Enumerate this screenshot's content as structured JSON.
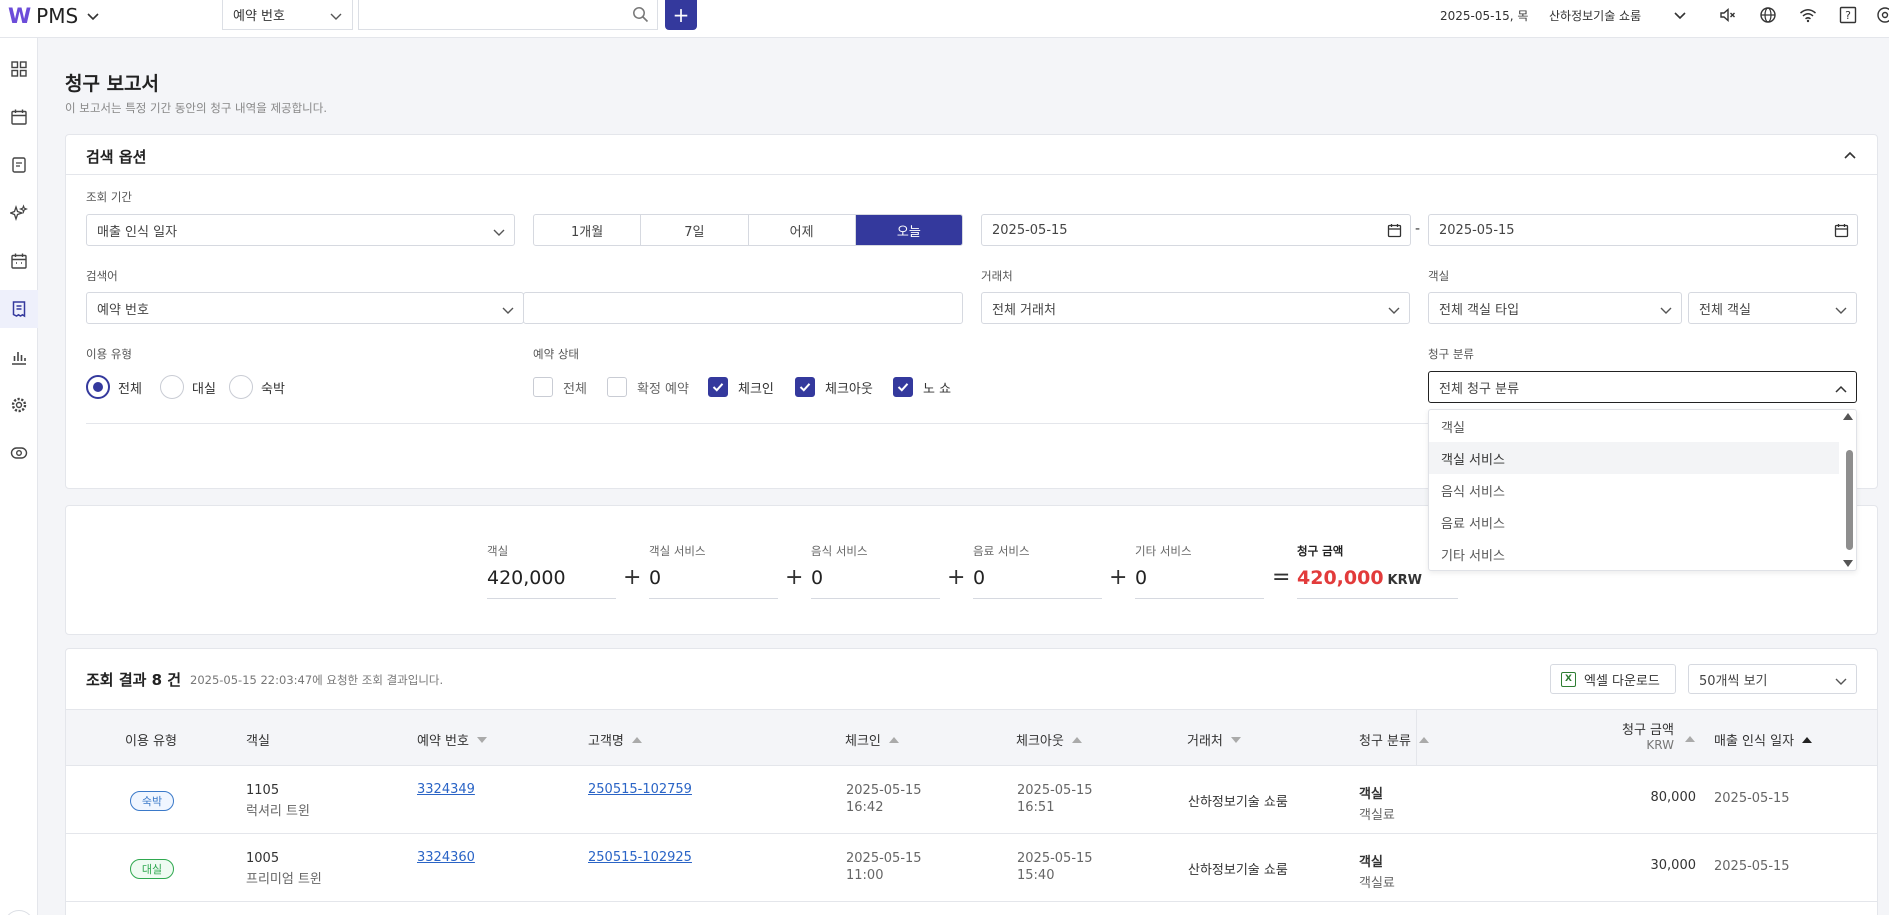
{
  "topbar": {
    "logo_mark": "W",
    "app_name": "PMS",
    "search_type": "예약 번호",
    "search_value": "",
    "add_label": "+",
    "date": "2025-05-15, 목",
    "company": "산하정보기술 쇼룸"
  },
  "nav": {
    "items": [
      "dashboard",
      "calendar",
      "reservations",
      "housekeeping",
      "schedule",
      "billing",
      "statistics",
      "settings",
      "view"
    ],
    "active": "billing"
  },
  "page": {
    "title": "청구 보고서",
    "description": "이 보고서는 특정 기간 동안의 청구 내역을 제공합니다."
  },
  "search": {
    "section_title": "검색 옵션",
    "period_label": "조회 기간",
    "period_type": "매출 인식 일자",
    "period_buttons": [
      "1개월",
      "7일",
      "어제",
      "오늘"
    ],
    "period_active": "오늘",
    "date_from": "2025-05-15",
    "date_sep": "-",
    "date_to": "2025-05-15",
    "keyword_label": "검색어",
    "keyword_type": "예약 번호",
    "keyword_value": "",
    "partner_label": "거래처",
    "partner_value": "전체 거래처",
    "room_label": "객실",
    "room_type_value": "전체 객실 타입",
    "room_value": "전체 객실",
    "usage_label": "이용 유형",
    "usage_options": [
      "전체",
      "대실",
      "숙박"
    ],
    "usage_selected": "전체",
    "status_label": "예약 상태",
    "status_options": [
      {
        "label": "전체",
        "checked": false
      },
      {
        "label": "확정 예약",
        "checked": false
      },
      {
        "label": "체크인",
        "checked": true
      },
      {
        "label": "체크아웃",
        "checked": true
      },
      {
        "label": "노 쇼",
        "checked": true
      }
    ],
    "category_label": "청구 분류",
    "category_value": "전체 청구 분류",
    "category_dropdown": [
      "객실",
      "객실 서비스",
      "음식 서비스",
      "음료 서비스",
      "기타 서비스"
    ],
    "category_hover": "객실 서비스"
  },
  "summary": {
    "items": [
      {
        "label": "객실",
        "value": "420,000"
      },
      {
        "label": "객실 서비스",
        "value": "0"
      },
      {
        "label": "음식 서비스",
        "value": "0"
      },
      {
        "label": "음료 서비스",
        "value": "0"
      },
      {
        "label": "기타 서비스",
        "value": "0"
      }
    ],
    "plus": "+",
    "equals": "=",
    "total_label": "청구 금액",
    "total_value": "420,000",
    "total_unit": "KRW"
  },
  "results": {
    "title": "조회 결과 8 건",
    "subtitle": "2025-05-15 22:03:47에 요청한 조회 결과입니다.",
    "excel_label": "엑셀 다운로드",
    "excel_icon": "X",
    "page_size": "50개씩 보기",
    "columns": {
      "usage": "이용 유형",
      "room": "객실",
      "reservation": "예약 번호",
      "guest": "고객명",
      "checkin": "체크인",
      "checkout": "체크아웃",
      "partner": "거래처",
      "category": "청구 분류",
      "amount": "청구 금액",
      "amount_unit": "KRW",
      "recognized": "매출 인식 일자"
    },
    "rows": [
      {
        "usage": "숙박",
        "room_no": "1105",
        "room_type": "럭셔리 트윈",
        "reservation": "3324349",
        "guest": "250515-102759",
        "checkin_date": "2025-05-15",
        "checkin_time": "16:42",
        "checkout_date": "2025-05-15",
        "checkout_time": "16:51",
        "partner": "산하정보기술 쇼룸",
        "category": "객실",
        "category_sub": "객실료",
        "amount": "80,000",
        "recognized": "2025-05-15"
      },
      {
        "usage": "대실",
        "room_no": "1005",
        "room_type": "프리미엄 트윈",
        "reservation": "3324360",
        "guest": "250515-102925",
        "checkin_date": "2025-05-15",
        "checkin_time": "11:00",
        "checkout_date": "2025-05-15",
        "checkout_time": "15:40",
        "partner": "산하정보기술 쇼룸",
        "category": "객실",
        "category_sub": "객실료",
        "amount": "30,000",
        "recognized": "2025-05-15"
      }
    ]
  },
  "colors": {
    "primary": "#34399d",
    "total": "#e23b3b",
    "link": "#2a64c6",
    "badge_stay": "#3a79c9",
    "badge_rent": "#2fa84f"
  }
}
